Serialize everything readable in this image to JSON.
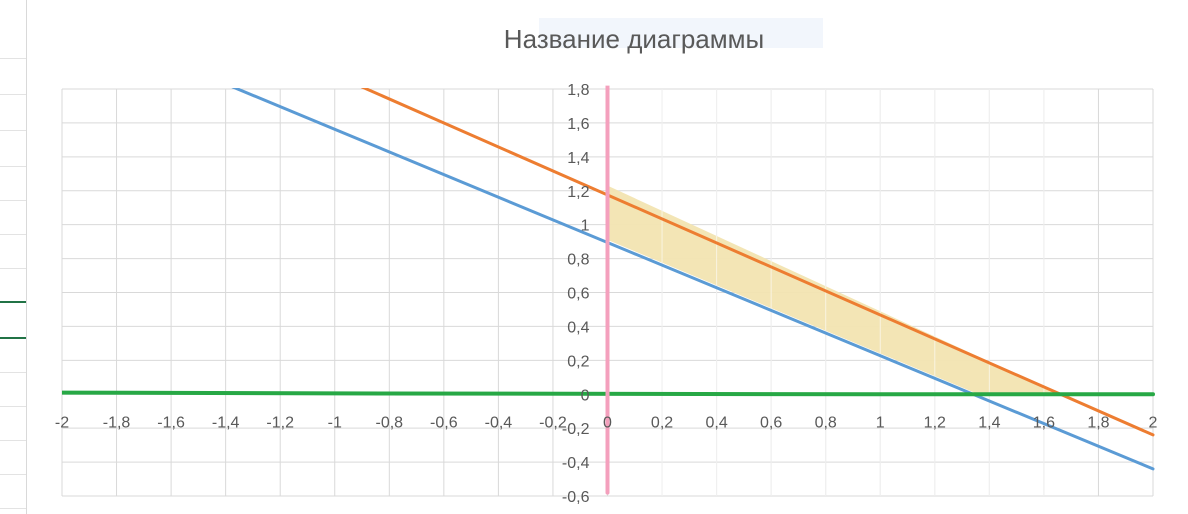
{
  "chart_data": {
    "type": "line",
    "title": "Название диаграммы",
    "xlabel": "",
    "ylabel": "",
    "xlim": [
      -2,
      2
    ],
    "ylim": [
      -0.6,
      1.8
    ],
    "grid": true,
    "x_ticks": [
      "-2",
      "-1,8",
      "-1,6",
      "-1,4",
      "-1,2",
      "-1",
      "-0,8",
      "-0,6",
      "-0,4",
      "-0,2",
      "0",
      "0,2",
      "0,4",
      "0,6",
      "0,8",
      "1",
      "1,2",
      "1,4",
      "1,6",
      "1,8",
      "2"
    ],
    "y_ticks": [
      "1,8",
      "1,6",
      "1,4",
      "1,2",
      "1",
      "0,8",
      "0,6",
      "0,4",
      "0,2",
      "0",
      "-0,2",
      "-0,4",
      "-0,6"
    ],
    "series": [
      {
        "color": "#5b9bd5",
        "x": [
          -2,
          2
        ],
        "y": [
          2.23,
          -0.44
        ]
      },
      {
        "color": "#ed7d31",
        "x": [
          -2,
          2
        ],
        "y": [
          2.59,
          -0.24
        ]
      },
      {
        "color": "#27a845",
        "x": [
          -2,
          -1,
          1,
          2
        ],
        "y": [
          0.01,
          0.005,
          0.0,
          0.0
        ]
      },
      {
        "color": "#f4a0bd",
        "x": [
          0,
          0
        ],
        "y": [
          1.82,
          -0.58
        ]
      }
    ],
    "shaded_region": {
      "color": "#f2e4b1",
      "description_x": [
        0,
        1.36,
        1.66,
        0
      ],
      "description_y": [
        0.91,
        0,
        0,
        1.23
      ]
    }
  }
}
